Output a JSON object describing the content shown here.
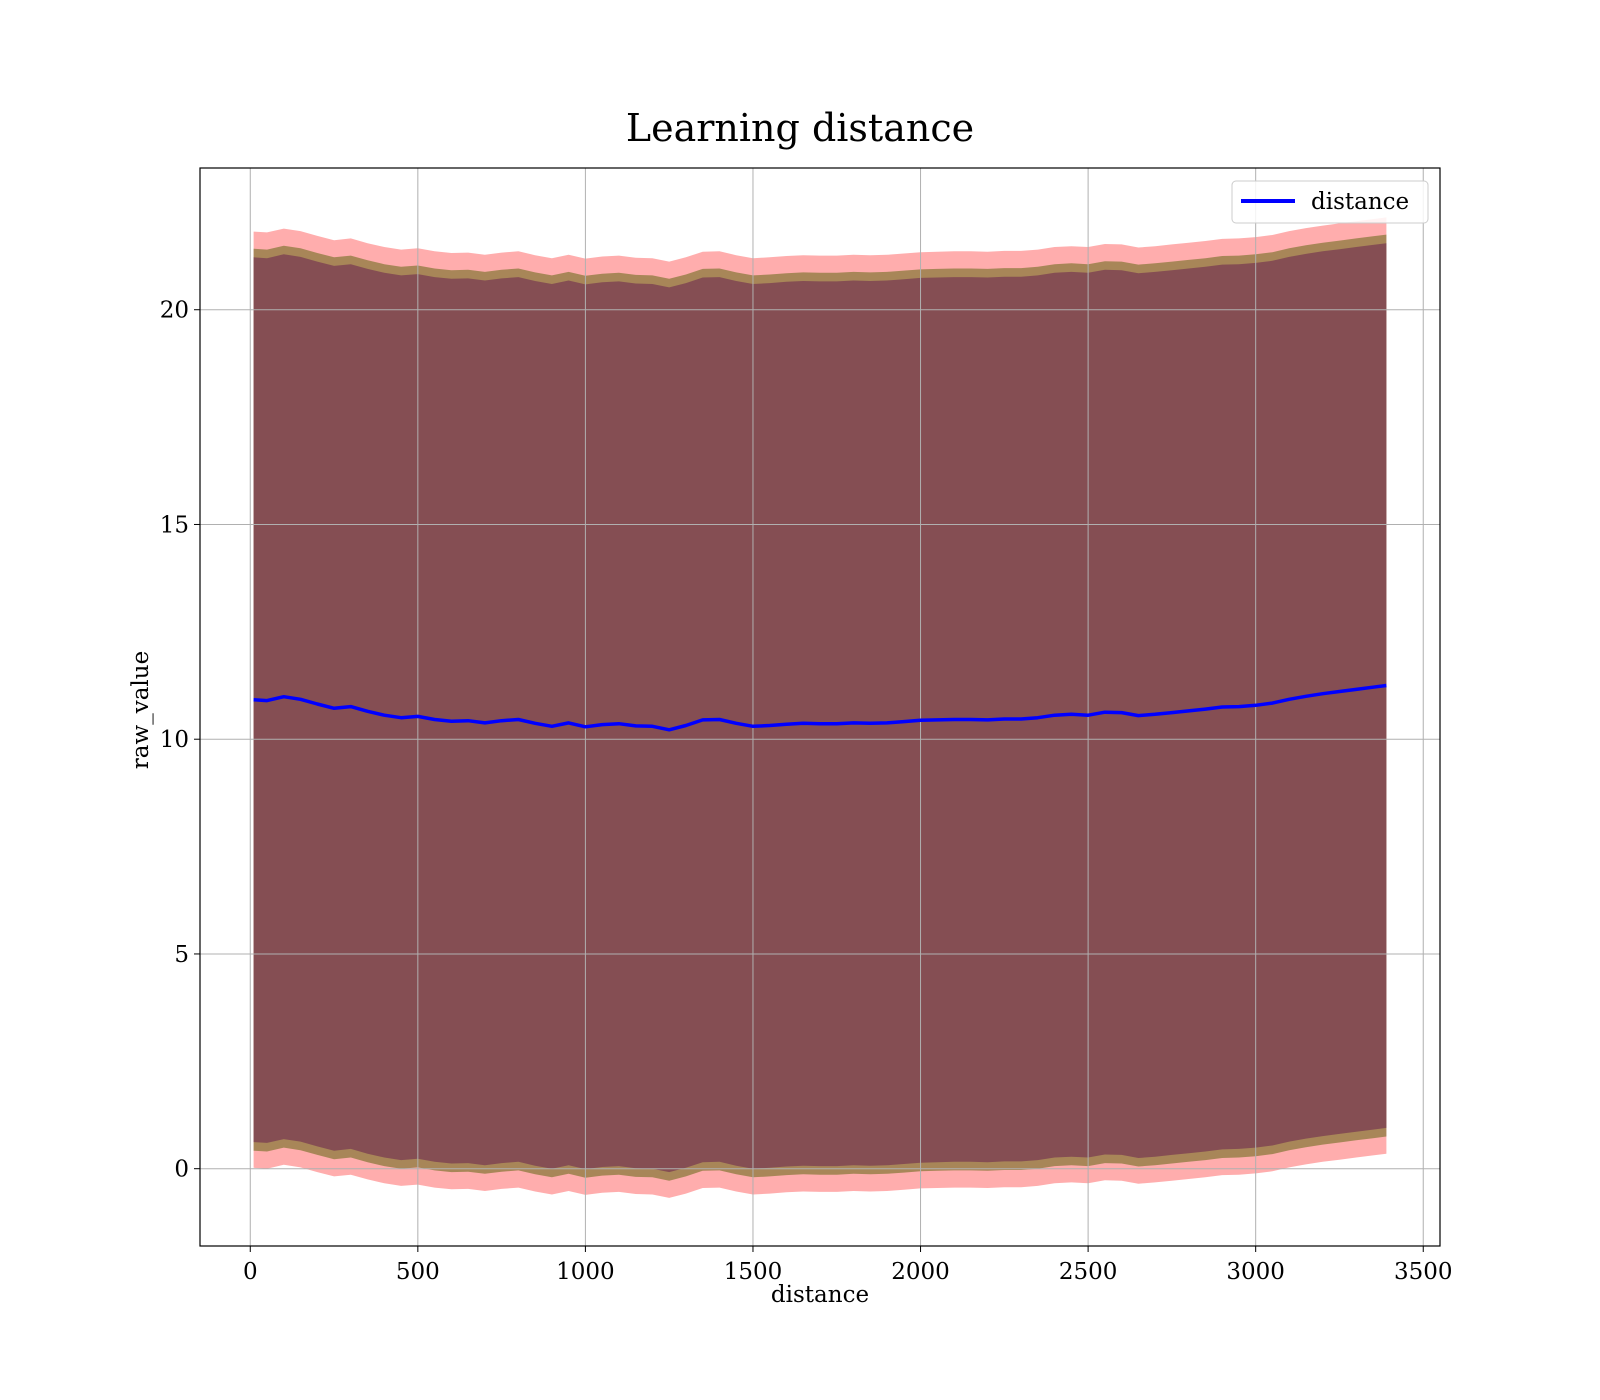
{
  "chart_data": {
    "type": "area",
    "title": "Learning distance",
    "xlabel": "distance",
    "ylabel": "raw_value",
    "xlim": [
      -150,
      3550
    ],
    "ylim": [
      -1.8,
      23.3
    ],
    "xticks": [
      0,
      500,
      1000,
      1500,
      2000,
      2500,
      3000,
      3500
    ],
    "yticks": [
      0,
      5,
      10,
      15,
      20
    ],
    "grid": true,
    "legend": {
      "placement": "top-right",
      "entries": [
        "distance"
      ]
    },
    "colors": {
      "mean_line": "#0000ff",
      "outer_band": "#ff0000",
      "middle_band": "#8b7a3c",
      "inner_band": "#7a3b52"
    },
    "x": [
      10,
      50,
      100,
      150,
      200,
      250,
      300,
      350,
      400,
      450,
      500,
      550,
      600,
      650,
      700,
      750,
      800,
      850,
      900,
      950,
      1000,
      1050,
      1100,
      1150,
      1200,
      1250,
      1300,
      1350,
      1400,
      1450,
      1500,
      1550,
      1600,
      1650,
      1700,
      1750,
      1800,
      1850,
      1900,
      1950,
      2000,
      2050,
      2100,
      2150,
      2200,
      2250,
      2300,
      2350,
      2400,
      2450,
      2500,
      2550,
      2600,
      2650,
      2700,
      2750,
      2800,
      2850,
      2900,
      2950,
      3000,
      3050,
      3100,
      3150,
      3200,
      3250,
      3300,
      3350,
      3390
    ],
    "series": [
      {
        "name": "distance",
        "values": [
          10.92,
          10.9,
          10.99,
          10.93,
          10.82,
          10.72,
          10.76,
          10.65,
          10.56,
          10.5,
          10.53,
          10.46,
          10.42,
          10.43,
          10.38,
          10.43,
          10.46,
          10.37,
          10.3,
          10.38,
          10.29,
          10.34,
          10.36,
          10.31,
          10.3,
          10.22,
          10.32,
          10.45,
          10.46,
          10.37,
          10.3,
          10.32,
          10.35,
          10.37,
          10.36,
          10.36,
          10.38,
          10.37,
          10.38,
          10.41,
          10.44,
          10.45,
          10.46,
          10.46,
          10.45,
          10.47,
          10.47,
          10.5,
          10.56,
          10.58,
          10.56,
          10.63,
          10.62,
          10.55,
          10.58,
          10.62,
          10.66,
          10.7,
          10.75,
          10.76,
          10.79,
          10.84,
          10.93,
          11.0,
          11.06,
          11.11,
          11.16,
          11.21,
          11.25
        ]
      }
    ],
    "bands": [
      {
        "level": "outer",
        "upper_offset": 10.9,
        "lower_offset": 10.9
      },
      {
        "level": "middle",
        "upper_offset": 10.5,
        "lower_offset": 10.5
      },
      {
        "level": "inner",
        "upper_offset": 10.3,
        "lower_offset": 10.3
      }
    ]
  }
}
